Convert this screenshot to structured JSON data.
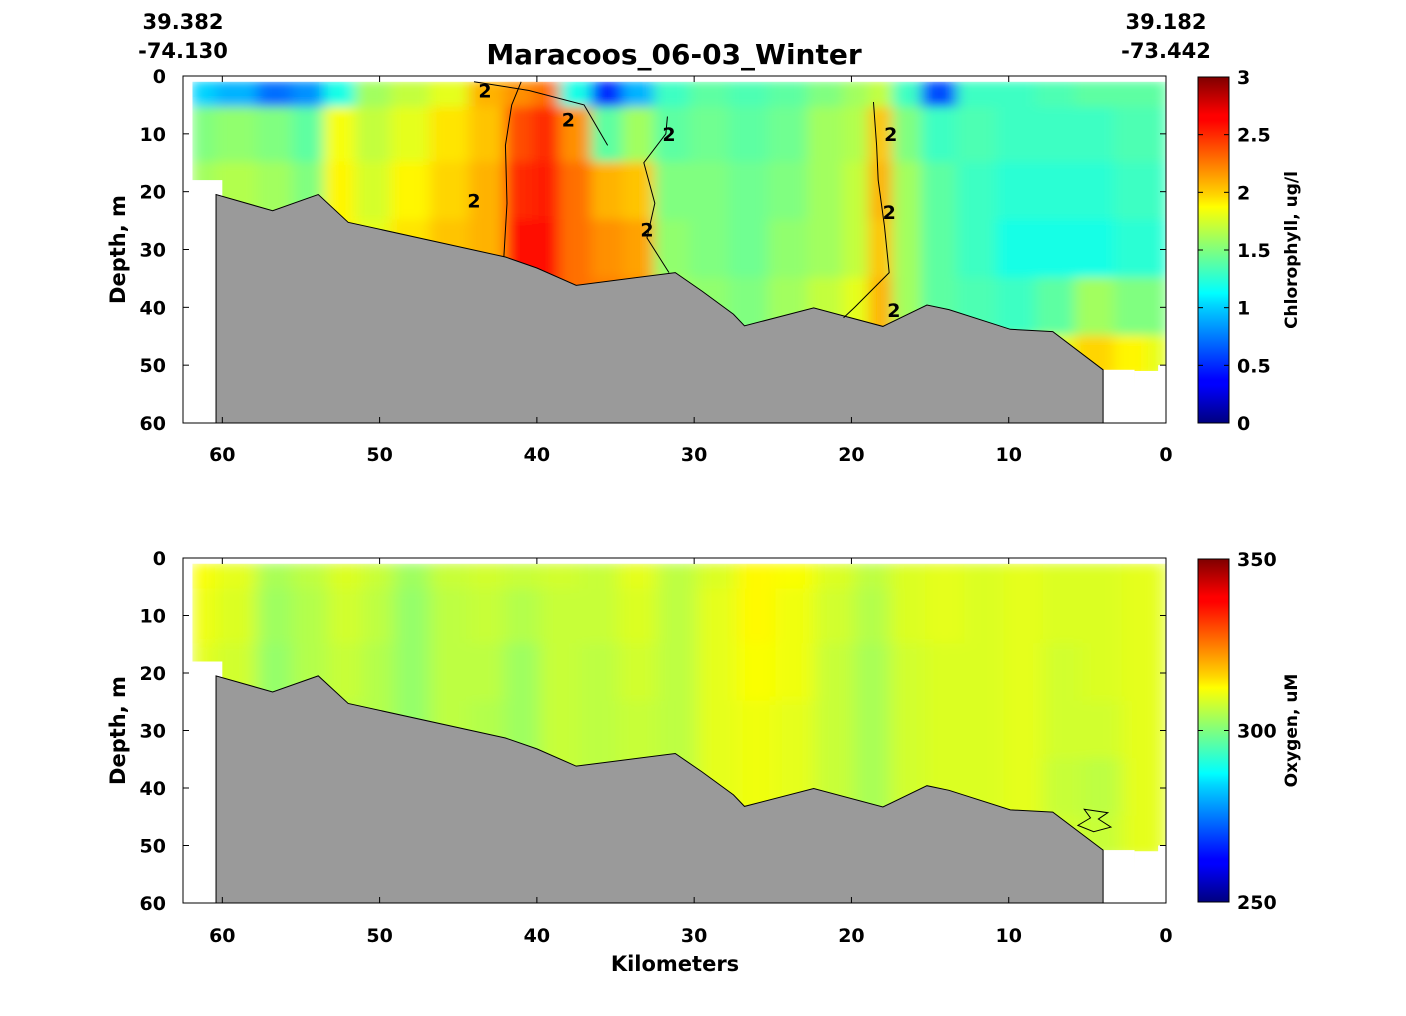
{
  "header": {
    "title": "Maracoos_06-03_Winter",
    "left_lat": "39.382",
    "left_lon": "-74.130",
    "right_lat": "39.182",
    "right_lon": "-73.442"
  },
  "chart_data": [
    {
      "type": "heatmap",
      "panel": "chlorophyll",
      "ylabel": "Depth, m",
      "xlabel": "",
      "xlim": [
        62.5,
        0
      ],
      "ylim": [
        0,
        60
      ],
      "xticks": [
        60,
        50,
        40,
        30,
        20,
        10,
        0
      ],
      "yticks": [
        0,
        10,
        20,
        30,
        40,
        50,
        60
      ],
      "colorbar": {
        "label": "Chlorophyll, ug/l",
        "range": [
          0,
          3
        ],
        "ticks": [
          "0",
          "0.5",
          "1",
          "1.5",
          "2",
          "2.5",
          "3"
        ]
      },
      "contour_label": "2",
      "seafloor": {
        "x": [
          60.4,
          56.8,
          53.9,
          52.0,
          42.0,
          40.0,
          37.5,
          31.2,
          29.5,
          27.5,
          26.8,
          22.4,
          18.0,
          15.2,
          13.8,
          9.9,
          7.2,
          4.0
        ],
        "depth": [
          20.5,
          23.3,
          20.5,
          25.3,
          31.3,
          33.2,
          36.2,
          34.0,
          37.2,
          41.2,
          43.2,
          40.1,
          43.3,
          39.6,
          40.4,
          43.8,
          44.2,
          50.8
        ]
      },
      "columns": [
        {
          "x": 61.8,
          "values": [
            1.0,
            1.5,
            1.6,
            1.6,
            1.6,
            1.6
          ]
        },
        {
          "x": 59.0,
          "values": [
            0.9,
            1.55,
            1.65,
            1.65,
            1.7,
            1.7
          ]
        },
        {
          "x": 56.5,
          "values": [
            0.7,
            1.5,
            1.6,
            1.7,
            1.7,
            1.7
          ]
        },
        {
          "x": 54.5,
          "values": [
            0.8,
            1.4,
            1.5,
            1.6,
            1.6,
            1.6
          ]
        },
        {
          "x": 52.5,
          "values": [
            1.2,
            1.85,
            1.9,
            1.9,
            1.9,
            1.9
          ]
        },
        {
          "x": 50.5,
          "values": [
            1.6,
            1.7,
            1.75,
            1.8,
            1.85,
            1.85
          ]
        },
        {
          "x": 48.0,
          "values": [
            1.7,
            1.8,
            1.9,
            1.95,
            2.0,
            2.0
          ]
        },
        {
          "x": 45.5,
          "values": [
            1.8,
            1.95,
            2.0,
            2.05,
            2.05,
            2.05
          ]
        },
        {
          "x": 43.0,
          "values": [
            2.1,
            2.05,
            2.1,
            2.1,
            2.1,
            2.15
          ]
        },
        {
          "x": 41.0,
          "values": [
            2.2,
            2.4,
            2.5,
            2.6,
            2.6,
            2.6
          ]
        },
        {
          "x": 39.5,
          "values": [
            2.3,
            2.5,
            2.55,
            2.6,
            2.6,
            2.55
          ]
        },
        {
          "x": 37.5,
          "values": [
            1.2,
            2.2,
            2.3,
            2.3,
            2.3,
            2.3
          ]
        },
        {
          "x": 35.5,
          "values": [
            0.5,
            1.4,
            2.1,
            2.2,
            2.25,
            2.25
          ]
        },
        {
          "x": 33.5,
          "values": [
            0.9,
            1.6,
            2.05,
            2.15,
            2.2,
            2.2
          ]
        },
        {
          "x": 31.5,
          "values": [
            1.3,
            1.4,
            1.5,
            1.55,
            1.6,
            1.6
          ]
        },
        {
          "x": 29.0,
          "values": [
            1.4,
            1.45,
            1.5,
            1.5,
            1.55,
            1.6
          ]
        },
        {
          "x": 26.5,
          "values": [
            1.35,
            1.4,
            1.45,
            1.45,
            1.5,
            1.5
          ]
        },
        {
          "x": 24.0,
          "values": [
            1.4,
            1.45,
            1.5,
            1.55,
            1.6,
            1.7
          ]
        },
        {
          "x": 21.5,
          "values": [
            1.5,
            1.6,
            1.6,
            1.6,
            1.7,
            1.75
          ]
        },
        {
          "x": 19.5,
          "values": [
            1.6,
            1.65,
            1.7,
            1.7,
            1.8,
            2.2
          ]
        },
        {
          "x": 18.2,
          "values": [
            1.7,
            2.05,
            2.1,
            2.05,
            2.1,
            2.3
          ]
        },
        {
          "x": 16.5,
          "values": [
            1.3,
            1.5,
            1.6,
            1.6,
            1.6,
            1.7
          ]
        },
        {
          "x": 14.5,
          "values": [
            0.6,
            1.3,
            1.4,
            1.4,
            1.4,
            1.55
          ]
        },
        {
          "x": 12.0,
          "values": [
            1.3,
            1.35,
            1.3,
            1.3,
            1.35,
            1.5
          ]
        },
        {
          "x": 9.5,
          "values": [
            1.3,
            1.3,
            1.25,
            1.2,
            1.3,
            1.55
          ]
        },
        {
          "x": 7.0,
          "values": [
            1.35,
            1.3,
            1.25,
            1.2,
            1.4,
            1.8
          ]
        },
        {
          "x": 4.5,
          "values": [
            1.4,
            1.3,
            1.25,
            1.2,
            1.6,
            2.0
          ]
        },
        {
          "x": 2.0,
          "values": [
            1.4,
            1.35,
            1.3,
            1.25,
            1.5,
            1.9
          ]
        },
        {
          "x": 0.2,
          "values": [
            1.4,
            1.35,
            1.3,
            1.25,
            1.5,
            1.8
          ]
        }
      ]
    },
    {
      "type": "heatmap",
      "panel": "oxygen",
      "ylabel": "Depth, m",
      "xlabel": "Kilometers",
      "xlim": [
        62.5,
        0
      ],
      "ylim": [
        0,
        60
      ],
      "xticks": [
        60,
        50,
        40,
        30,
        20,
        10,
        0
      ],
      "yticks": [
        0,
        10,
        20,
        30,
        40,
        50,
        60
      ],
      "colorbar": {
        "label": "Oxygen, uM",
        "range": [
          250,
          350
        ],
        "ticks": [
          "250",
          "300",
          "350"
        ]
      },
      "seafloor": {
        "x": [
          60.4,
          56.8,
          53.9,
          52.0,
          42.0,
          40.0,
          37.5,
          31.2,
          29.5,
          27.5,
          26.8,
          22.4,
          18.0,
          15.2,
          13.8,
          9.9,
          7.2,
          4.0
        ],
        "depth": [
          20.5,
          23.3,
          20.5,
          25.3,
          31.3,
          33.2,
          36.2,
          34.0,
          37.2,
          41.2,
          43.2,
          40.1,
          43.3,
          39.6,
          40.4,
          43.8,
          44.2,
          50.8
        ]
      },
      "columns": [
        {
          "x": 61.8,
          "values": [
            312,
            311,
            310,
            309,
            308,
            308
          ]
        },
        {
          "x": 59.0,
          "values": [
            310,
            309,
            308,
            307,
            306,
            306
          ]
        },
        {
          "x": 56.5,
          "values": [
            304,
            303,
            302,
            302,
            302,
            302
          ]
        },
        {
          "x": 54.5,
          "values": [
            306,
            305,
            305,
            304,
            304,
            304
          ]
        },
        {
          "x": 52.0,
          "values": [
            309,
            308,
            307,
            306,
            306,
            306
          ]
        },
        {
          "x": 50.0,
          "values": [
            307,
            306,
            305,
            305,
            305,
            305
          ]
        },
        {
          "x": 48.0,
          "values": [
            303,
            302,
            302,
            302,
            302,
            302
          ]
        },
        {
          "x": 45.5,
          "values": [
            307,
            306,
            306,
            306,
            306,
            306
          ]
        },
        {
          "x": 43.0,
          "values": [
            308,
            307,
            306,
            305,
            304,
            304
          ]
        },
        {
          "x": 41.0,
          "values": [
            307,
            305,
            303,
            303,
            303,
            303
          ]
        },
        {
          "x": 38.5,
          "values": [
            308,
            307,
            307,
            307,
            307,
            307
          ]
        },
        {
          "x": 36.0,
          "values": [
            307,
            307,
            306,
            306,
            306,
            306
          ]
        },
        {
          "x": 33.5,
          "values": [
            310,
            309,
            308,
            307,
            307,
            307
          ]
        },
        {
          "x": 31.0,
          "values": [
            306,
            306,
            306,
            306,
            306,
            306
          ]
        },
        {
          "x": 28.5,
          "values": [
            309,
            310,
            310,
            310,
            310,
            310
          ]
        },
        {
          "x": 26.0,
          "values": [
            313,
            313,
            312,
            311,
            311,
            311
          ]
        },
        {
          "x": 23.5,
          "values": [
            312,
            311,
            311,
            310,
            310,
            310
          ]
        },
        {
          "x": 21.0,
          "values": [
            309,
            308,
            307,
            307,
            307,
            307
          ]
        },
        {
          "x": 18.5,
          "values": [
            306,
            305,
            304,
            304,
            304,
            304
          ]
        },
        {
          "x": 16.5,
          "values": [
            309,
            309,
            308,
            308,
            308,
            308
          ]
        },
        {
          "x": 14.0,
          "values": [
            310,
            310,
            309,
            309,
            309,
            309
          ]
        },
        {
          "x": 11.5,
          "values": [
            309,
            309,
            309,
            309,
            309,
            309
          ]
        },
        {
          "x": 9.0,
          "values": [
            310,
            310,
            310,
            310,
            310,
            310
          ]
        },
        {
          "x": 6.5,
          "values": [
            309,
            309,
            308,
            308,
            307,
            308
          ]
        },
        {
          "x": 4.0,
          "values": [
            309,
            309,
            309,
            308,
            306,
            307
          ]
        },
        {
          "x": 1.5,
          "values": [
            310,
            310,
            310,
            310,
            310,
            310
          ]
        },
        {
          "x": 0.2,
          "values": [
            310,
            310,
            310,
            310,
            310,
            310
          ]
        }
      ]
    }
  ]
}
